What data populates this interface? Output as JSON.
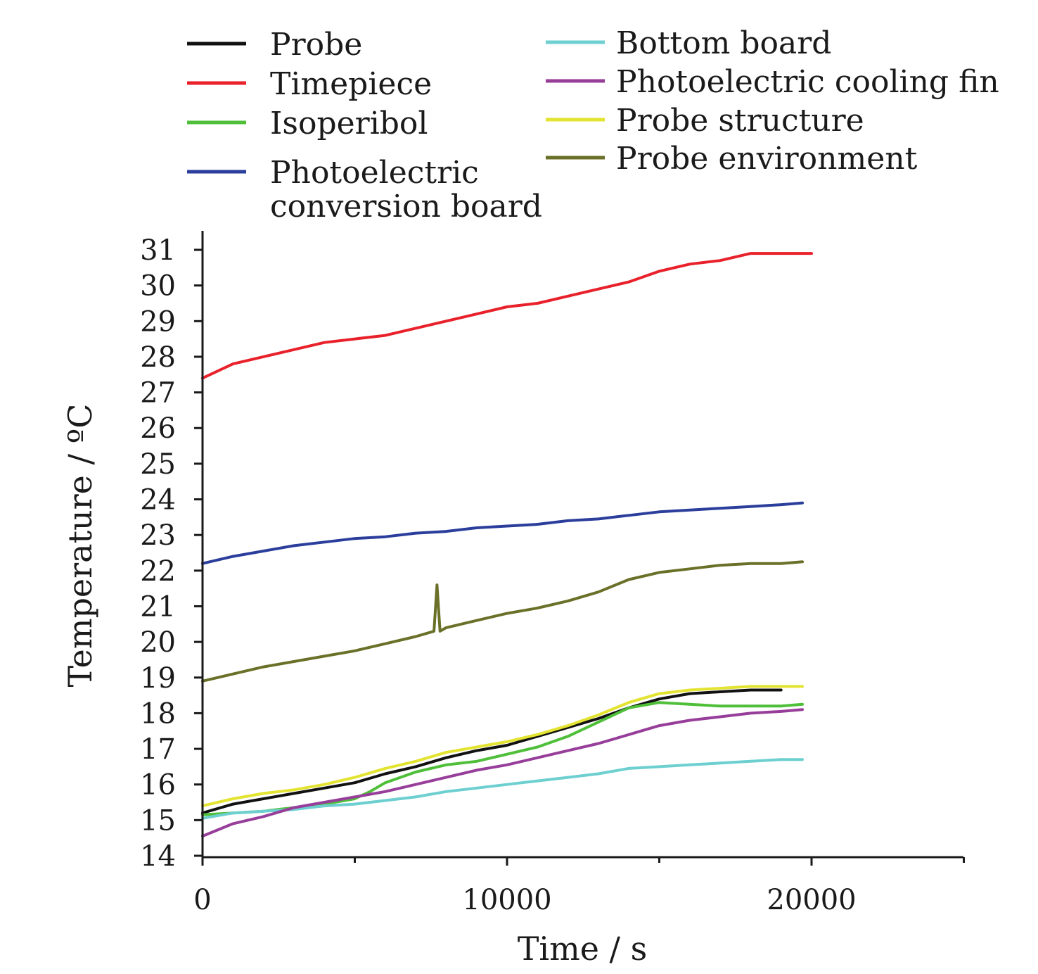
{
  "chart_data": {
    "type": "line",
    "xlabel": "Time / s",
    "ylabel": "Temperature / ºC",
    "xlim": [
      0,
      25000
    ],
    "ylim": [
      14,
      31
    ],
    "xticks": [
      0,
      10000,
      20000
    ],
    "xticks_minor": [
      5000,
      15000,
      25000
    ],
    "yticks": [
      14,
      15,
      16,
      17,
      18,
      19,
      20,
      21,
      22,
      23,
      24,
      25,
      26,
      27,
      28,
      29,
      30,
      31
    ],
    "grid": false,
    "legend_position": "top",
    "series": [
      {
        "name": "Probe",
        "color": "#111111",
        "x": [
          0,
          1000,
          2000,
          3000,
          4000,
          5000,
          6000,
          7000,
          8000,
          9000,
          10000,
          11000,
          12000,
          13000,
          14000,
          15000,
          16000,
          17000,
          18000,
          19000
        ],
        "y": [
          15.2,
          15.45,
          15.6,
          15.75,
          15.9,
          16.05,
          16.3,
          16.5,
          16.75,
          16.95,
          17.1,
          17.35,
          17.6,
          17.85,
          18.15,
          18.4,
          18.55,
          18.6,
          18.65,
          18.65
        ]
      },
      {
        "name": "Timepiece",
        "color": "#e8212b",
        "x": [
          0,
          1000,
          2000,
          3000,
          4000,
          5000,
          6000,
          7000,
          8000,
          9000,
          10000,
          11000,
          12000,
          13000,
          14000,
          15000,
          16000,
          17000,
          18000,
          19000,
          20000
        ],
        "y": [
          27.4,
          27.8,
          28.0,
          28.2,
          28.4,
          28.5,
          28.6,
          28.8,
          29.0,
          29.2,
          29.4,
          29.5,
          29.7,
          29.9,
          30.1,
          30.4,
          30.6,
          30.7,
          30.9,
          30.9,
          30.9
        ]
      },
      {
        "name": "Isoperibol",
        "color": "#4fbf3a",
        "x": [
          0,
          1000,
          2000,
          3000,
          4000,
          5000,
          5500,
          6000,
          7000,
          8000,
          9000,
          10000,
          11000,
          12000,
          13000,
          14000,
          15000,
          16000,
          17000,
          18000,
          19000,
          19700
        ],
        "y": [
          15.15,
          15.2,
          15.25,
          15.35,
          15.45,
          15.6,
          15.8,
          16.05,
          16.35,
          16.55,
          16.65,
          16.85,
          17.05,
          17.35,
          17.75,
          18.15,
          18.3,
          18.25,
          18.2,
          18.2,
          18.2,
          18.25
        ]
      },
      {
        "name": "Photoelectric conversion board",
        "color": "#2b3e9c",
        "x": [
          0,
          1000,
          2000,
          3000,
          4000,
          5000,
          6000,
          7000,
          8000,
          9000,
          10000,
          11000,
          12000,
          13000,
          14000,
          15000,
          16000,
          17000,
          18000,
          19000,
          19700
        ],
        "y": [
          22.2,
          22.4,
          22.55,
          22.7,
          22.8,
          22.9,
          22.95,
          23.05,
          23.1,
          23.2,
          23.25,
          23.3,
          23.4,
          23.45,
          23.55,
          23.65,
          23.7,
          23.75,
          23.8,
          23.85,
          23.9
        ]
      },
      {
        "name": "Bottom board",
        "color": "#6dcfd0",
        "x": [
          0,
          1000,
          2000,
          3000,
          4000,
          5000,
          6000,
          7000,
          8000,
          9000,
          10000,
          11000,
          12000,
          13000,
          14000,
          15000,
          16000,
          17000,
          18000,
          19000,
          19700
        ],
        "y": [
          15.05,
          15.2,
          15.25,
          15.3,
          15.4,
          15.45,
          15.55,
          15.65,
          15.8,
          15.9,
          16.0,
          16.1,
          16.2,
          16.3,
          16.45,
          16.5,
          16.55,
          16.6,
          16.65,
          16.7,
          16.7
        ]
      },
      {
        "name": "Photoelectric cooling fin",
        "color": "#973e9a",
        "x": [
          0,
          1000,
          2000,
          3000,
          4000,
          5000,
          6000,
          7000,
          8000,
          9000,
          10000,
          11000,
          12000,
          13000,
          14000,
          15000,
          16000,
          17000,
          18000,
          19000,
          19700
        ],
        "y": [
          14.55,
          14.9,
          15.1,
          15.35,
          15.5,
          15.65,
          15.8,
          16.0,
          16.2,
          16.4,
          16.55,
          16.75,
          16.95,
          17.15,
          17.4,
          17.65,
          17.8,
          17.9,
          18.0,
          18.05,
          18.1
        ]
      },
      {
        "name": "Probe structure",
        "color": "#e3e332",
        "x": [
          0,
          1000,
          2000,
          3000,
          4000,
          5000,
          6000,
          7000,
          8000,
          9000,
          10000,
          11000,
          12000,
          13000,
          14000,
          15000,
          16000,
          17000,
          18000,
          19000,
          19700
        ],
        "y": [
          15.4,
          15.6,
          15.75,
          15.85,
          16.0,
          16.2,
          16.45,
          16.65,
          16.9,
          17.05,
          17.2,
          17.4,
          17.65,
          17.95,
          18.3,
          18.55,
          18.65,
          18.7,
          18.75,
          18.75,
          18.75
        ]
      },
      {
        "name": "Probe environment",
        "color": "#6b7029",
        "x": [
          0,
          1000,
          2000,
          3000,
          4000,
          5000,
          6000,
          7000,
          7600,
          7700,
          7800,
          8000,
          9000,
          10000,
          11000,
          12000,
          13000,
          14000,
          15000,
          16000,
          17000,
          18000,
          19000,
          19700
        ],
        "y": [
          18.9,
          19.1,
          19.3,
          19.45,
          19.6,
          19.75,
          19.95,
          20.15,
          20.3,
          21.6,
          20.3,
          20.4,
          20.6,
          20.8,
          20.95,
          21.15,
          21.4,
          21.75,
          21.95,
          22.05,
          22.15,
          22.2,
          22.2,
          22.25
        ]
      }
    ]
  }
}
